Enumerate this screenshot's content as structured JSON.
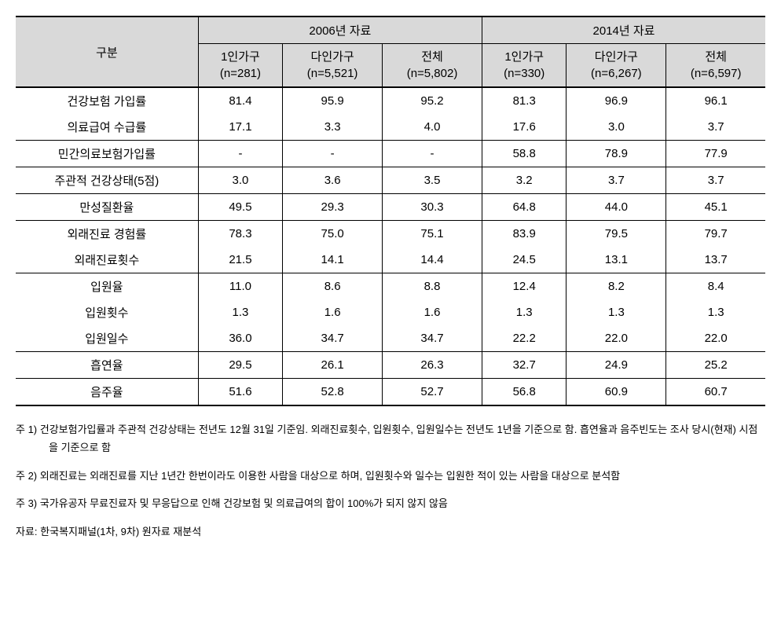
{
  "table": {
    "row_label_header": "구분",
    "year_groups": [
      {
        "title": "2006년 자료",
        "cols": [
          {
            "label": "1인가구",
            "n": "(n=281)"
          },
          {
            "label": "다인가구",
            "n": "(n=5,521)"
          },
          {
            "label": "전체",
            "n": "(n=5,802)"
          }
        ]
      },
      {
        "title": "2014년 자료",
        "cols": [
          {
            "label": "1인가구",
            "n": "(n=330)"
          },
          {
            "label": "다인가구",
            "n": "(n=6,267)"
          },
          {
            "label": "전체",
            "n": "(n=6,597)"
          }
        ]
      }
    ],
    "rows": [
      {
        "label": "건강보험 가입률",
        "values": [
          "81.4",
          "95.9",
          "95.2",
          "81.3",
          "96.9",
          "96.1"
        ],
        "section_end": false
      },
      {
        "label": "의료급여 수급률",
        "values": [
          "17.1",
          "3.3",
          "4.0",
          "17.6",
          "3.0",
          "3.7"
        ],
        "section_end": true
      },
      {
        "label": "민간의료보험가입률",
        "values": [
          "-",
          "-",
          "-",
          "58.8",
          "78.9",
          "77.9"
        ],
        "section_end": true
      },
      {
        "label": "주관적 건강상태(5점)",
        "values": [
          "3.0",
          "3.6",
          "3.5",
          "3.2",
          "3.7",
          "3.7"
        ],
        "section_end": true
      },
      {
        "label": "만성질환율",
        "values": [
          "49.5",
          "29.3",
          "30.3",
          "64.8",
          "44.0",
          "45.1"
        ],
        "section_end": true
      },
      {
        "label": "외래진료 경험률",
        "values": [
          "78.3",
          "75.0",
          "75.1",
          "83.9",
          "79.5",
          "79.7"
        ],
        "section_end": false
      },
      {
        "label": "외래진료횟수",
        "values": [
          "21.5",
          "14.1",
          "14.4",
          "24.5",
          "13.1",
          "13.7"
        ],
        "section_end": true
      },
      {
        "label": "입원율",
        "values": [
          "11.0",
          "8.6",
          "8.8",
          "12.4",
          "8.2",
          "8.4"
        ],
        "section_end": false
      },
      {
        "label": "입원횟수",
        "values": [
          "1.3",
          "1.6",
          "1.6",
          "1.3",
          "1.3",
          "1.3"
        ],
        "section_end": false
      },
      {
        "label": "입원일수",
        "values": [
          "36.0",
          "34.7",
          "34.7",
          "22.2",
          "22.0",
          "22.0"
        ],
        "section_end": true
      },
      {
        "label": "흡연율",
        "values": [
          "29.5",
          "26.1",
          "26.3",
          "32.7",
          "24.9",
          "25.2"
        ],
        "section_end": true
      },
      {
        "label": "음주율",
        "values": [
          "51.6",
          "52.8",
          "52.7",
          "56.8",
          "60.9",
          "60.7"
        ],
        "section_end": true
      }
    ]
  },
  "notes": {
    "n1": "주 1) 건강보험가입률과 주관적 건강상태는 전년도 12월 31일 기준임. 외래진료횟수, 입원횟수, 입원일수는 전년도 1년을 기준으로 함. 흡연율과 음주빈도는 조사 당시(현재) 시점을 기준으로 함",
    "n2": "주 2) 외래진료는 외래진료를 지난 1년간 한번이라도 이용한 사람을 대상으로 하며, 입원횟수와 일수는 입원한 적이 있는 사람을 대상으로 분석함",
    "n3": "주 3) 국가유공자 무료진료자 및 무응답으로 인해 건강보험 및 의료급여의 합이 100%가 되지 않지 않음",
    "source": "자료: 한국복지패널(1차, 9차) 원자료 재분석"
  }
}
